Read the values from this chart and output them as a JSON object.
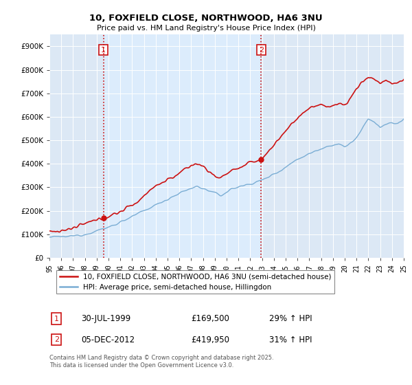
{
  "title": "10, FOXFIELD CLOSE, NORTHWOOD, HA6 3NU",
  "subtitle": "Price paid vs. HM Land Registry's House Price Index (HPI)",
  "ylim": [
    0,
    950000
  ],
  "yticks": [
    0,
    100000,
    200000,
    300000,
    400000,
    500000,
    600000,
    700000,
    800000,
    900000
  ],
  "ytick_labels": [
    "£0",
    "£100K",
    "£200K",
    "£300K",
    "£400K",
    "£500K",
    "£600K",
    "£700K",
    "£800K",
    "£900K"
  ],
  "background_color": "#ffffff",
  "plot_bg_color": "#dce8f5",
  "shade_color": "#ccdff0",
  "grid_color": "#ffffff",
  "hpi_color": "#7aadd4",
  "price_color": "#cc1111",
  "vline_color": "#cc1111",
  "x_start_year": 1995,
  "x_end_year": 2025,
  "sale1_year": 1999.58,
  "sale2_year": 2012.92,
  "sale1_price": 169500,
  "sale2_price": 419950,
  "legend_price_label": "10, FOXFIELD CLOSE, NORTHWOOD, HA6 3NU (semi-detached house)",
  "legend_hpi_label": "HPI: Average price, semi-detached house, Hillingdon",
  "sale1_date_str": "30-JUL-1999",
  "sale1_price_str": "£169,500",
  "sale1_pct_str": "29% ↑ HPI",
  "sale2_date_str": "05-DEC-2012",
  "sale2_price_str": "£419,950",
  "sale2_pct_str": "31% ↑ HPI",
  "footer": "Contains HM Land Registry data © Crown copyright and database right 2025.\nThis data is licensed under the Open Government Licence v3.0."
}
